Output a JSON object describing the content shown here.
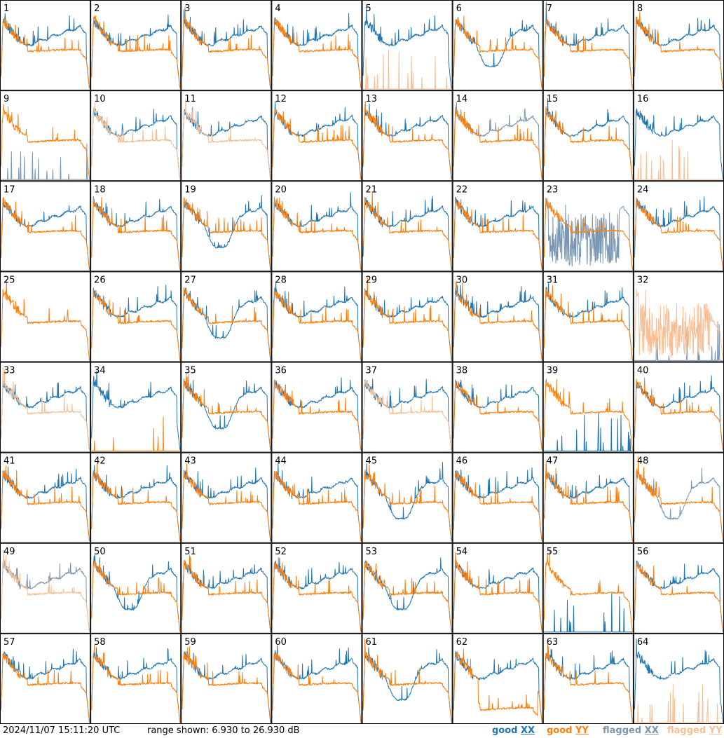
{
  "chart_data": {
    "type": "line",
    "layout": "8x8 small multiples of antenna power spectra",
    "timestamp": "2024/11/07 15:11:20 UTC",
    "range_label": "range shown: 6.930 to 26.930 dB",
    "ylim": [
      6.93,
      26.93
    ],
    "y_unit": "dB",
    "legend": [
      {
        "name": "good XX",
        "pol": "XX",
        "state": "good",
        "color": "#1f77b4"
      },
      {
        "name": "good YY",
        "pol": "YY",
        "state": "good",
        "color": "#ff7f0e"
      },
      {
        "name": "flagged XX",
        "pol": "XX",
        "state": "flagged",
        "color": "#7a96b3"
      },
      {
        "name": "flagged YY",
        "pol": "YY",
        "state": "flagged",
        "color": "#f8be94"
      }
    ],
    "panels": [
      {
        "id": "1",
        "xx": "good",
        "yy": "good",
        "xx_shape": "normal",
        "yy_shape": "normal"
      },
      {
        "id": "2",
        "xx": "good",
        "yy": "good",
        "xx_shape": "normal",
        "yy_shape": "normal"
      },
      {
        "id": "3",
        "xx": "good",
        "yy": "good",
        "xx_shape": "normal",
        "yy_shape": "normal"
      },
      {
        "id": "4",
        "xx": "good",
        "yy": "good",
        "xx_shape": "normal",
        "yy_shape": "normal"
      },
      {
        "id": "5",
        "xx": "good",
        "yy": "flagged",
        "xx_shape": "normal",
        "yy_shape": "dead"
      },
      {
        "id": "6",
        "xx": "good",
        "yy": "good",
        "xx_shape": "dip",
        "yy_shape": "normal"
      },
      {
        "id": "7",
        "xx": "good",
        "yy": "good",
        "xx_shape": "normal",
        "yy_shape": "normal"
      },
      {
        "id": "8",
        "xx": "good",
        "yy": "good",
        "xx_shape": "normal",
        "yy_shape": "normal"
      },
      {
        "id": "9",
        "xx": "flagged",
        "yy": "good",
        "xx_shape": "dead",
        "yy_shape": "normal"
      },
      {
        "id": "10",
        "xx": "good",
        "yy": "flagged",
        "xx_shape": "normal",
        "yy_shape": "normal"
      },
      {
        "id": "11",
        "xx": "good",
        "yy": "flagged",
        "xx_shape": "normal",
        "yy_shape": "normal"
      },
      {
        "id": "12",
        "xx": "good",
        "yy": "good",
        "xx_shape": "normal",
        "yy_shape": "normal"
      },
      {
        "id": "13",
        "xx": "good",
        "yy": "good",
        "xx_shape": "normal",
        "yy_shape": "normal"
      },
      {
        "id": "14",
        "xx": "flagged",
        "yy": "good",
        "xx_shape": "normal",
        "yy_shape": "normal"
      },
      {
        "id": "15",
        "xx": "good",
        "yy": "good",
        "xx_shape": "normal",
        "yy_shape": "normal"
      },
      {
        "id": "16",
        "xx": "good",
        "yy": "flagged",
        "xx_shape": "normal",
        "yy_shape": "dead"
      },
      {
        "id": "17",
        "xx": "good",
        "yy": "good",
        "xx_shape": "normal",
        "yy_shape": "normal"
      },
      {
        "id": "18",
        "xx": "good",
        "yy": "good",
        "xx_shape": "normal",
        "yy_shape": "normal"
      },
      {
        "id": "19",
        "xx": "good",
        "yy": "good",
        "xx_shape": "dip",
        "yy_shape": "normal"
      },
      {
        "id": "20",
        "xx": "good",
        "yy": "good",
        "xx_shape": "normal",
        "yy_shape": "normal"
      },
      {
        "id": "21",
        "xx": "good",
        "yy": "good",
        "xx_shape": "normal",
        "yy_shape": "normal"
      },
      {
        "id": "22",
        "xx": "good",
        "yy": "good",
        "xx_shape": "normal",
        "yy_shape": "normal"
      },
      {
        "id": "23",
        "xx": "flagged",
        "yy": "good",
        "xx_shape": "noisy",
        "yy_shape": "normal"
      },
      {
        "id": "24",
        "xx": "good",
        "yy": "good",
        "xx_shape": "normal",
        "yy_shape": "normal"
      },
      {
        "id": "25",
        "xx": "none",
        "yy": "good",
        "xx_shape": "none",
        "yy_shape": "normal"
      },
      {
        "id": "26",
        "xx": "good",
        "yy": "good",
        "xx_shape": "normal",
        "yy_shape": "normal"
      },
      {
        "id": "27",
        "xx": "good",
        "yy": "good",
        "xx_shape": "dip",
        "yy_shape": "normal"
      },
      {
        "id": "28",
        "xx": "good",
        "yy": "good",
        "xx_shape": "normal",
        "yy_shape": "normal"
      },
      {
        "id": "29",
        "xx": "good",
        "yy": "good",
        "xx_shape": "normal",
        "yy_shape": "normal"
      },
      {
        "id": "30",
        "xx": "good",
        "yy": "good",
        "xx_shape": "normal",
        "yy_shape": "normal"
      },
      {
        "id": "31",
        "xx": "good",
        "yy": "good",
        "xx_shape": "normal",
        "yy_shape": "normal"
      },
      {
        "id": "32",
        "xx": "flagged",
        "yy": "flagged",
        "xx_shape": "dead",
        "yy_shape": "noisy"
      },
      {
        "id": "33",
        "xx": "good",
        "yy": "flagged",
        "xx_shape": "normal",
        "yy_shape": "normal"
      },
      {
        "id": "34",
        "xx": "good",
        "yy": "good",
        "xx_shape": "normal",
        "yy_shape": "dead"
      },
      {
        "id": "35",
        "xx": "good",
        "yy": "good",
        "xx_shape": "dip",
        "yy_shape": "normal"
      },
      {
        "id": "36",
        "xx": "good",
        "yy": "good",
        "xx_shape": "normal",
        "yy_shape": "normal"
      },
      {
        "id": "37",
        "xx": "good",
        "yy": "flagged",
        "xx_shape": "normal",
        "yy_shape": "normal"
      },
      {
        "id": "38",
        "xx": "good",
        "yy": "good",
        "xx_shape": "normal",
        "yy_shape": "normal"
      },
      {
        "id": "39",
        "xx": "good",
        "yy": "good",
        "xx_shape": "dead",
        "yy_shape": "normal"
      },
      {
        "id": "40",
        "xx": "good",
        "yy": "good",
        "xx_shape": "normal",
        "yy_shape": "normal"
      },
      {
        "id": "41",
        "xx": "good",
        "yy": "good",
        "xx_shape": "normal",
        "yy_shape": "normal"
      },
      {
        "id": "42",
        "xx": "good",
        "yy": "good",
        "xx_shape": "normal",
        "yy_shape": "normal"
      },
      {
        "id": "43",
        "xx": "good",
        "yy": "good",
        "xx_shape": "normal",
        "yy_shape": "normal"
      },
      {
        "id": "44",
        "xx": "good",
        "yy": "good",
        "xx_shape": "normal",
        "yy_shape": "normal"
      },
      {
        "id": "45",
        "xx": "good",
        "yy": "good",
        "xx_shape": "dip",
        "yy_shape": "normal"
      },
      {
        "id": "46",
        "xx": "good",
        "yy": "good",
        "xx_shape": "normal",
        "yy_shape": "normal"
      },
      {
        "id": "47",
        "xx": "good",
        "yy": "good",
        "xx_shape": "normal",
        "yy_shape": "normal"
      },
      {
        "id": "48",
        "xx": "flagged",
        "yy": "good",
        "xx_shape": "dip",
        "yy_shape": "normal"
      },
      {
        "id": "49",
        "xx": "flagged",
        "yy": "flagged",
        "xx_shape": "normal",
        "yy_shape": "normal"
      },
      {
        "id": "50",
        "xx": "good",
        "yy": "good",
        "xx_shape": "dip",
        "yy_shape": "normal"
      },
      {
        "id": "51",
        "xx": "good",
        "yy": "good",
        "xx_shape": "normal",
        "yy_shape": "normal"
      },
      {
        "id": "52",
        "xx": "good",
        "yy": "good",
        "xx_shape": "normal",
        "yy_shape": "normal"
      },
      {
        "id": "53",
        "xx": "good",
        "yy": "good",
        "xx_shape": "dip",
        "yy_shape": "normal"
      },
      {
        "id": "54",
        "xx": "good",
        "yy": "good",
        "xx_shape": "normal",
        "yy_shape": "normal"
      },
      {
        "id": "55",
        "xx": "good",
        "yy": "good",
        "xx_shape": "dead",
        "yy_shape": "normal"
      },
      {
        "id": "56",
        "xx": "good",
        "yy": "good",
        "xx_shape": "normal",
        "yy_shape": "normal"
      },
      {
        "id": "57",
        "xx": "good",
        "yy": "good",
        "xx_shape": "normal",
        "yy_shape": "normal"
      },
      {
        "id": "58",
        "xx": "good",
        "yy": "good",
        "xx_shape": "normal",
        "yy_shape": "normal"
      },
      {
        "id": "59",
        "xx": "good",
        "yy": "good",
        "xx_shape": "normal",
        "yy_shape": "normal"
      },
      {
        "id": "60",
        "xx": "good",
        "yy": "good",
        "xx_shape": "normal",
        "yy_shape": "normal"
      },
      {
        "id": "61",
        "xx": "good",
        "yy": "good",
        "xx_shape": "dip",
        "yy_shape": "normal"
      },
      {
        "id": "62",
        "xx": "good",
        "yy": "good",
        "xx_shape": "normal",
        "yy_shape": "low"
      },
      {
        "id": "63",
        "xx": "good",
        "yy": "good",
        "xx_shape": "normal",
        "yy_shape": "normal"
      },
      {
        "id": "64",
        "xx": "good",
        "yy": "flagged",
        "xx_shape": "normal",
        "yy_shape": "dead"
      }
    ]
  }
}
